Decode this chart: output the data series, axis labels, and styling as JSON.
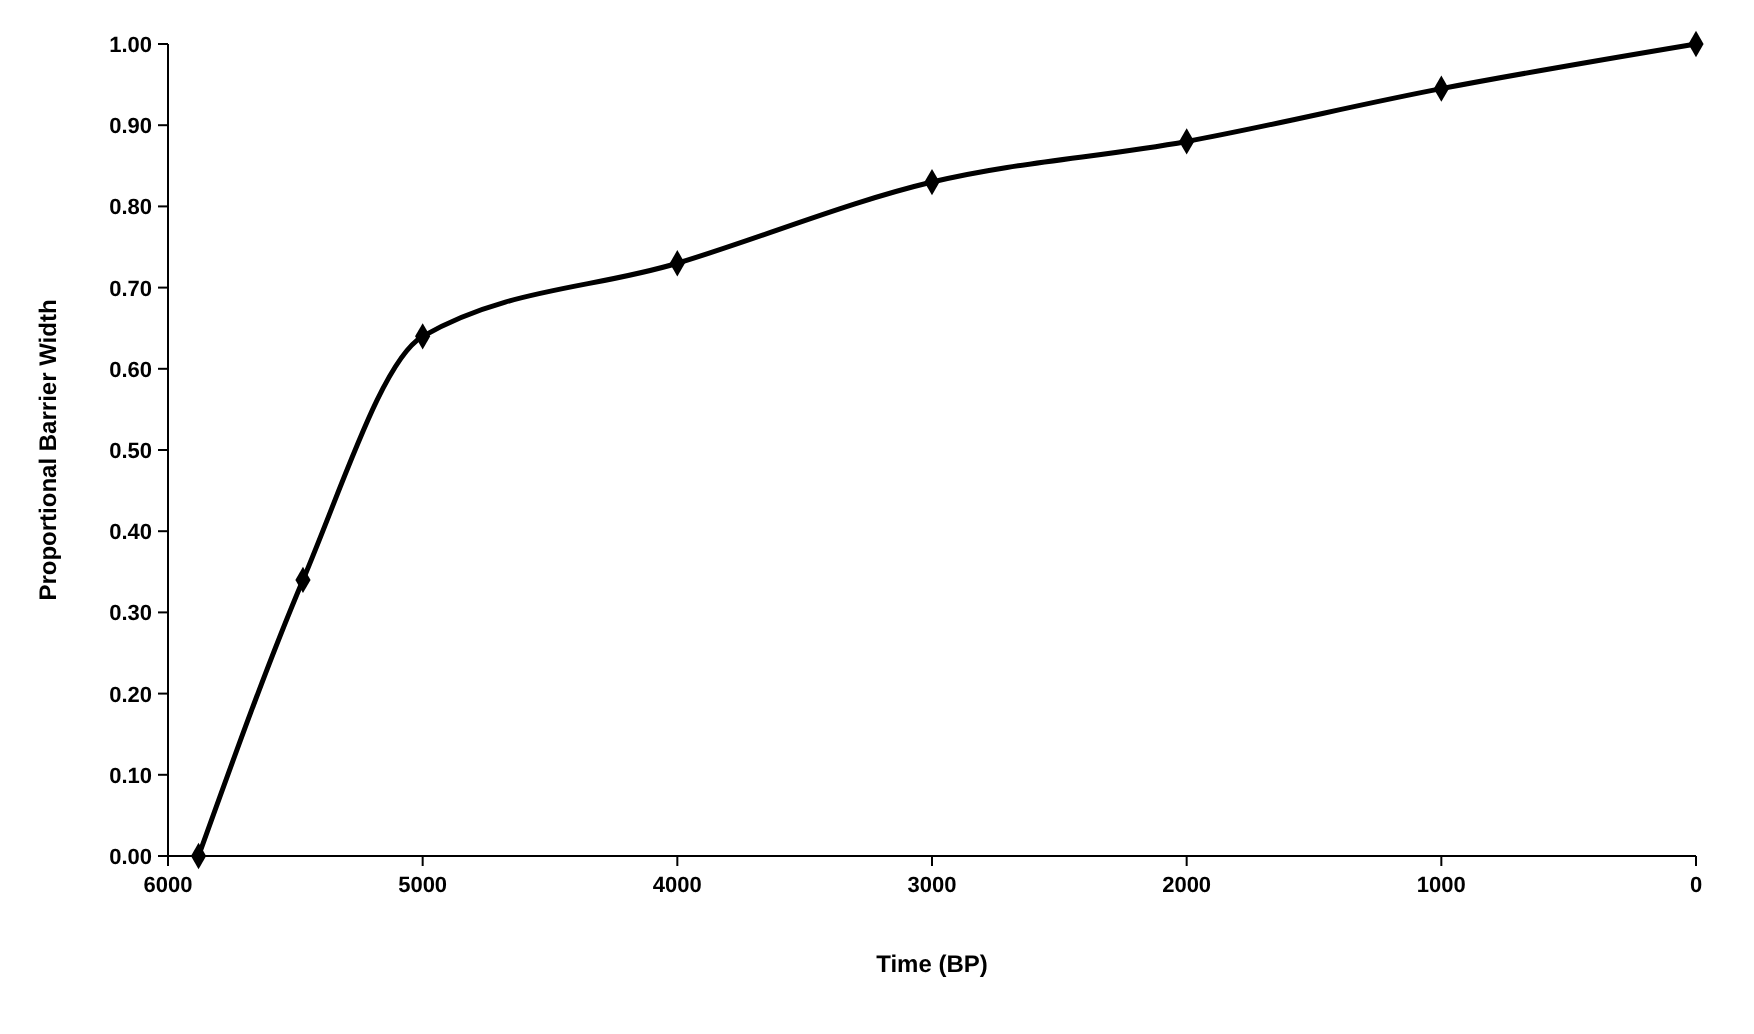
{
  "chart_data": {
    "type": "line",
    "xlabel": "Time (BP)",
    "ylabel": "Proportional Barrier Width",
    "x": [
      5880,
      5470,
      5000,
      4000,
      3000,
      2000,
      1000,
      0
    ],
    "series": [
      {
        "color": "#000000",
        "values": [
          0.0,
          0.34,
          0.64,
          0.73,
          0.83,
          0.88,
          0.945,
          1.0
        ]
      }
    ],
    "xlim": [
      6000,
      0
    ],
    "xticks": [
      6000,
      5000,
      4000,
      3000,
      2000,
      1000,
      0
    ],
    "ylim": [
      0,
      1
    ],
    "yticks": [
      {
        "value": 0,
        "label": "0.00"
      },
      {
        "value": 0.1,
        "label": "0.10"
      },
      {
        "value": 0.2,
        "label": "0.20"
      },
      {
        "value": 0.3,
        "label": "0.30"
      },
      {
        "value": 0.4,
        "label": "0.40"
      },
      {
        "value": 0.5,
        "label": "0.50"
      },
      {
        "value": 0.6,
        "label": "0.60"
      },
      {
        "value": 0.7,
        "label": "0.70"
      },
      {
        "value": 0.8,
        "label": "0.80"
      },
      {
        "value": 0.9,
        "label": "0.90"
      },
      {
        "value": 1,
        "label": "1.00"
      }
    ],
    "grid": false,
    "marker": "diamond",
    "line_style": "solid"
  }
}
